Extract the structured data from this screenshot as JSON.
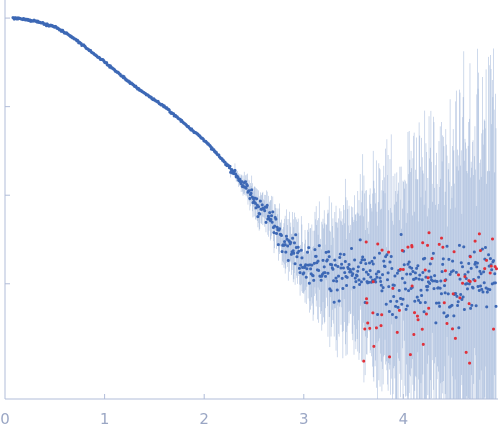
{
  "chart_data": {
    "type": "scatter",
    "title": "",
    "xlabel": "",
    "ylabel": "",
    "xlim": [
      0,
      4.95
    ],
    "y_log": true,
    "ylim": [
      5e-05,
      1.6
    ],
    "x_ticks": [
      "0",
      "1",
      "2",
      "3",
      "4"
    ],
    "x_tick_values": [
      0,
      1,
      2,
      3,
      4
    ],
    "y_tick_values": [
      1,
      0.1,
      0.01,
      0.001
    ],
    "grid": false,
    "legend": "none",
    "colors": {
      "points": "#3d68b5",
      "outliers": "#e0303a",
      "error_bars": "#b9c9e3",
      "axis": "#b0bcd8",
      "tick_text": "#9aa6c4"
    },
    "series": [
      {
        "color": "#3d68b5",
        "profile_points": [
          [
            0.08,
            1.0
          ],
          [
            0.3,
            0.93
          ],
          [
            0.5,
            0.8
          ],
          [
            0.7,
            0.58
          ],
          [
            1.0,
            0.32
          ],
          [
            1.3,
            0.17
          ],
          [
            1.6,
            0.1
          ],
          [
            2.0,
            0.042
          ],
          [
            2.3,
            0.018
          ],
          [
            2.6,
            0.0065
          ],
          [
            3.0,
            0.0018
          ],
          [
            3.5,
            0.0012
          ],
          [
            4.0,
            0.001
          ],
          [
            4.5,
            0.001
          ],
          [
            4.95,
            0.0012
          ]
        ]
      },
      {
        "color": "#e0303a",
        "x_range": [
          3.6,
          4.95
        ],
        "y_range": [
          0.0001,
          0.004
        ]
      }
    ]
  }
}
